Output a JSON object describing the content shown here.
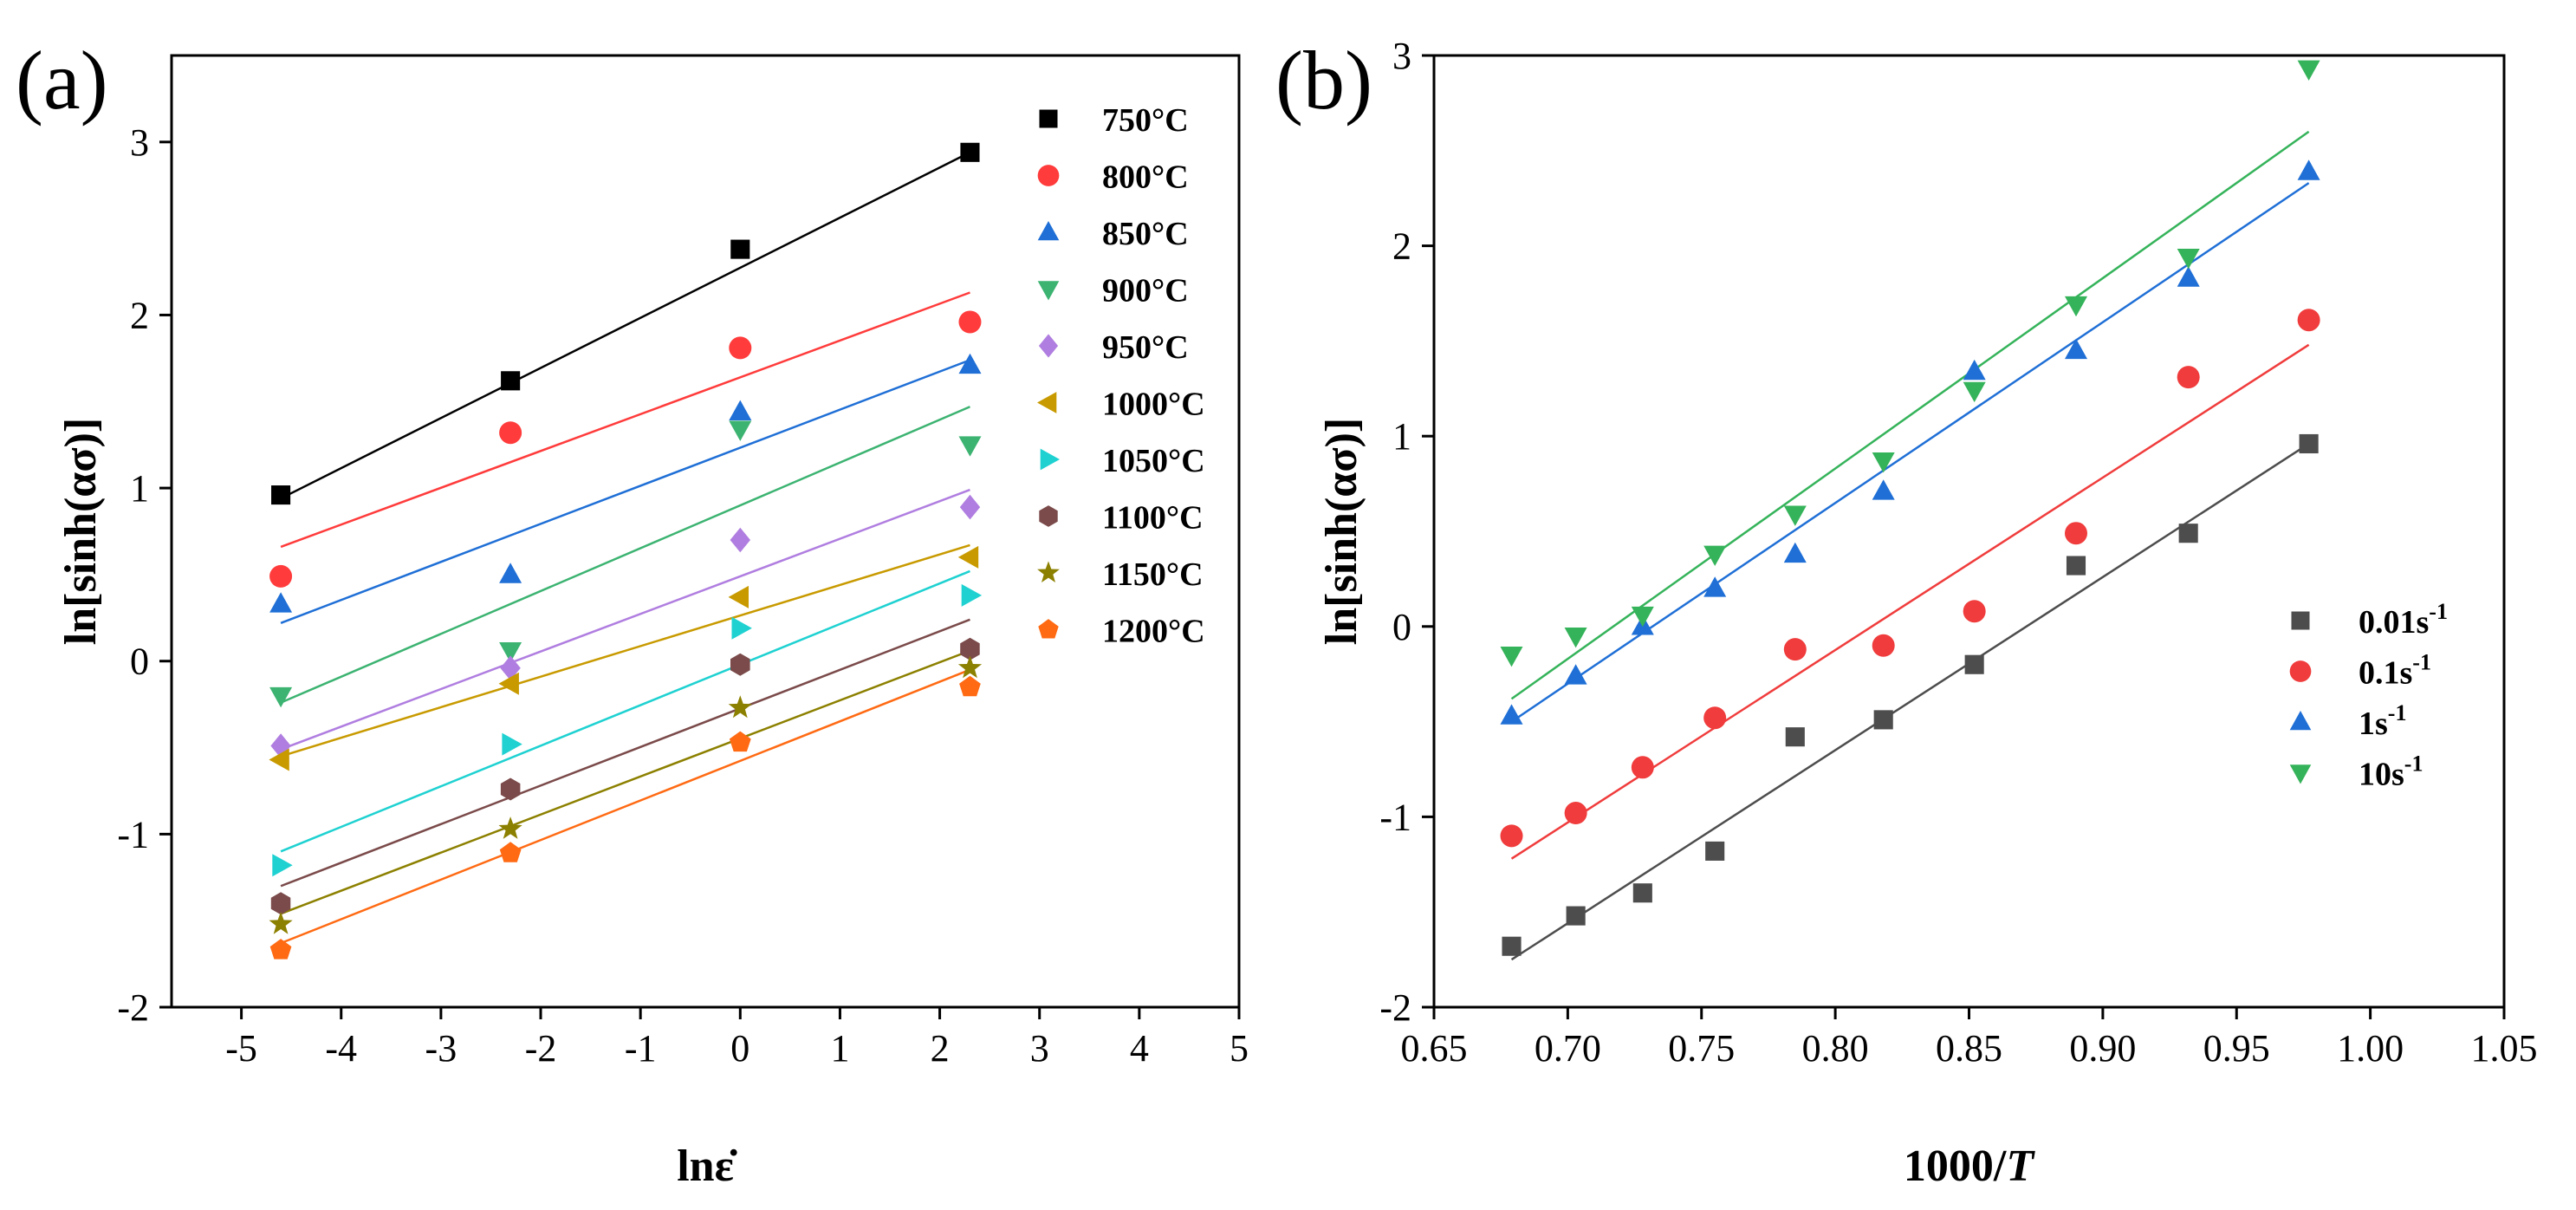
{
  "colors": {
    "black": "#000000",
    "red": "#ff3b3b",
    "blue": "#1f6fd6",
    "green": "#3cb371",
    "purple": "#b07ee0",
    "gold": "#c89a00",
    "cyan": "#1fd1d1",
    "brown": "#7b4a4a",
    "olive": "#8c8000",
    "orange": "#ff6a13",
    "gray": "#4d4d4d",
    "b_red": "#f03c3c",
    "b_blue": "#1f6fd6",
    "b_green": "#35b35a"
  },
  "chart_data": [
    {
      "type": "scatter",
      "panel_label": "(a)",
      "title": "",
      "xlabel": "lnε̇",
      "ylabel": "ln[sinh(ασ)]",
      "xlim": [
        -5.7,
        5
      ],
      "ylim": [
        -2,
        3.5
      ],
      "x_ticks": [
        -5,
        -4,
        -3,
        -2,
        -1,
        0,
        1,
        2,
        3,
        4,
        5
      ],
      "x_tick_labels": [
        "-5",
        "-4",
        "-3",
        "-2",
        "-1",
        "0",
        "1",
        "2",
        "3",
        "4",
        "5"
      ],
      "y_ticks": [
        -2,
        -1,
        0,
        1,
        2,
        3
      ],
      "y_tick_labels": [
        "-2",
        "-1",
        "0",
        "1",
        "2",
        "3"
      ],
      "legend_position": "top-right",
      "x": [
        -4.605,
        -2.303,
        0,
        2.303
      ],
      "series": [
        {
          "name": "750°C",
          "marker": "square",
          "color_key": "black",
          "values": [
            0.96,
            1.62,
            2.38,
            2.94
          ],
          "fit": {
            "x0": -4.605,
            "y0": 0.94,
            "x1": 2.303,
            "y1": 2.94
          }
        },
        {
          "name": "800°C",
          "marker": "circle",
          "color_key": "red",
          "values": [
            0.49,
            1.32,
            1.81,
            1.96
          ],
          "fit": {
            "x0": -4.605,
            "y0": 0.66,
            "x1": 2.303,
            "y1": 2.13
          }
        },
        {
          "name": "850°C",
          "marker": "triangle-up",
          "color_key": "blue",
          "values": [
            0.33,
            0.5,
            1.44,
            1.71
          ],
          "fit": {
            "x0": -4.605,
            "y0": 0.22,
            "x1": 2.303,
            "y1": 1.74
          }
        },
        {
          "name": "900°C",
          "marker": "triangle-down",
          "color_key": "green",
          "values": [
            -0.2,
            0.06,
            1.34,
            1.25
          ],
          "fit": {
            "x0": -4.605,
            "y0": -0.24,
            "x1": 2.303,
            "y1": 1.47
          }
        },
        {
          "name": "950°C",
          "marker": "diamond",
          "color_key": "purple",
          "values": [
            -0.49,
            -0.04,
            0.7,
            0.89
          ],
          "fit": {
            "x0": -4.605,
            "y0": -0.51,
            "x1": 2.303,
            "y1": 0.99
          }
        },
        {
          "name": "1000°C",
          "marker": "triangle-left",
          "color_key": "gold",
          "values": [
            -0.57,
            -0.13,
            0.37,
            0.6
          ],
          "fit": {
            "x0": -4.605,
            "y0": -0.55,
            "x1": 2.303,
            "y1": 0.67
          }
        },
        {
          "name": "1050°C",
          "marker": "triangle-right",
          "color_key": "cyan",
          "values": [
            -1.18,
            -0.48,
            0.19,
            0.38
          ],
          "fit": {
            "x0": -4.605,
            "y0": -1.1,
            "x1": 2.303,
            "y1": 0.52
          }
        },
        {
          "name": "1100°C",
          "marker": "hexagon",
          "color_key": "brown",
          "values": [
            -1.4,
            -0.74,
            -0.02,
            0.07
          ],
          "fit": {
            "x0": -4.605,
            "y0": -1.3,
            "x1": 2.303,
            "y1": 0.24
          }
        },
        {
          "name": "1150°C",
          "marker": "star",
          "color_key": "olive",
          "values": [
            -1.52,
            -0.97,
            -0.27,
            -0.04
          ],
          "fit": {
            "x0": -4.605,
            "y0": -1.46,
            "x1": 2.303,
            "y1": 0.06
          }
        },
        {
          "name": "1200°C",
          "marker": "pentagon",
          "color_key": "orange",
          "values": [
            -1.67,
            -1.11,
            -0.47,
            -0.15
          ],
          "fit": {
            "x0": -4.605,
            "y0": -1.63,
            "x1": 2.303,
            "y1": -0.05
          }
        }
      ]
    },
    {
      "type": "scatter",
      "panel_label": "(b)",
      "title": "",
      "xlabel": "1000/",
      "xlabel_var": "T",
      "ylabel": "ln[sinh(ασ)]",
      "xlim": [
        0.65,
        1.05
      ],
      "ylim": [
        -2,
        3
      ],
      "x_ticks": [
        0.65,
        0.7,
        0.75,
        0.8,
        0.85,
        0.9,
        0.95,
        1.0,
        1.05
      ],
      "x_tick_labels": [
        "0.65",
        "0.70",
        "0.75",
        "0.80",
        "0.85",
        "0.90",
        "0.95",
        "1.00",
        "1.05"
      ],
      "y_ticks": [
        -2,
        -1,
        0,
        1,
        2,
        3
      ],
      "y_tick_labels": [
        "-2",
        "-1",
        "0",
        "1",
        "2",
        "3"
      ],
      "legend_position": "bottom-right",
      "x": [
        0.679,
        0.703,
        0.728,
        0.755,
        0.785,
        0.818,
        0.852,
        0.89,
        0.932,
        0.977
      ],
      "series": [
        {
          "name": "0.01s",
          "name_sup": "-1",
          "marker": "square",
          "color_key": "gray",
          "values": [
            -1.68,
            -1.52,
            -1.4,
            -1.18,
            -0.58,
            -0.49,
            -0.2,
            0.32,
            0.49,
            0.96
          ],
          "fit": {
            "x0": 0.679,
            "y0": -1.75,
            "x1": 0.977,
            "y1": 0.96
          }
        },
        {
          "name": "0.1s",
          "name_sup": "-1",
          "marker": "circle",
          "color_key": "b_red",
          "values": [
            -1.1,
            -0.98,
            -0.74,
            -0.48,
            -0.12,
            -0.1,
            0.08,
            0.49,
            1.31,
            1.61
          ],
          "fit": {
            "x0": 0.679,
            "y0": -1.22,
            "x1": 0.977,
            "y1": 1.48
          }
        },
        {
          "name": "1s",
          "name_sup": "-1",
          "marker": "triangle-up",
          "color_key": "b_blue",
          "values": [
            -0.47,
            -0.26,
            0.0,
            0.2,
            0.38,
            0.71,
            1.34,
            1.45,
            1.83,
            2.39
          ],
          "fit": {
            "x0": 0.679,
            "y0": -0.5,
            "x1": 0.977,
            "y1": 2.33
          }
        },
        {
          "name": "10s",
          "name_sup": "-1",
          "marker": "triangle-down",
          "color_key": "b_green",
          "values": [
            -0.15,
            -0.05,
            0.06,
            0.38,
            0.59,
            0.87,
            1.24,
            1.69,
            1.94,
            2.93
          ],
          "fit": {
            "x0": 0.679,
            "y0": -0.38,
            "x1": 0.977,
            "y1": 2.6
          }
        }
      ]
    }
  ]
}
